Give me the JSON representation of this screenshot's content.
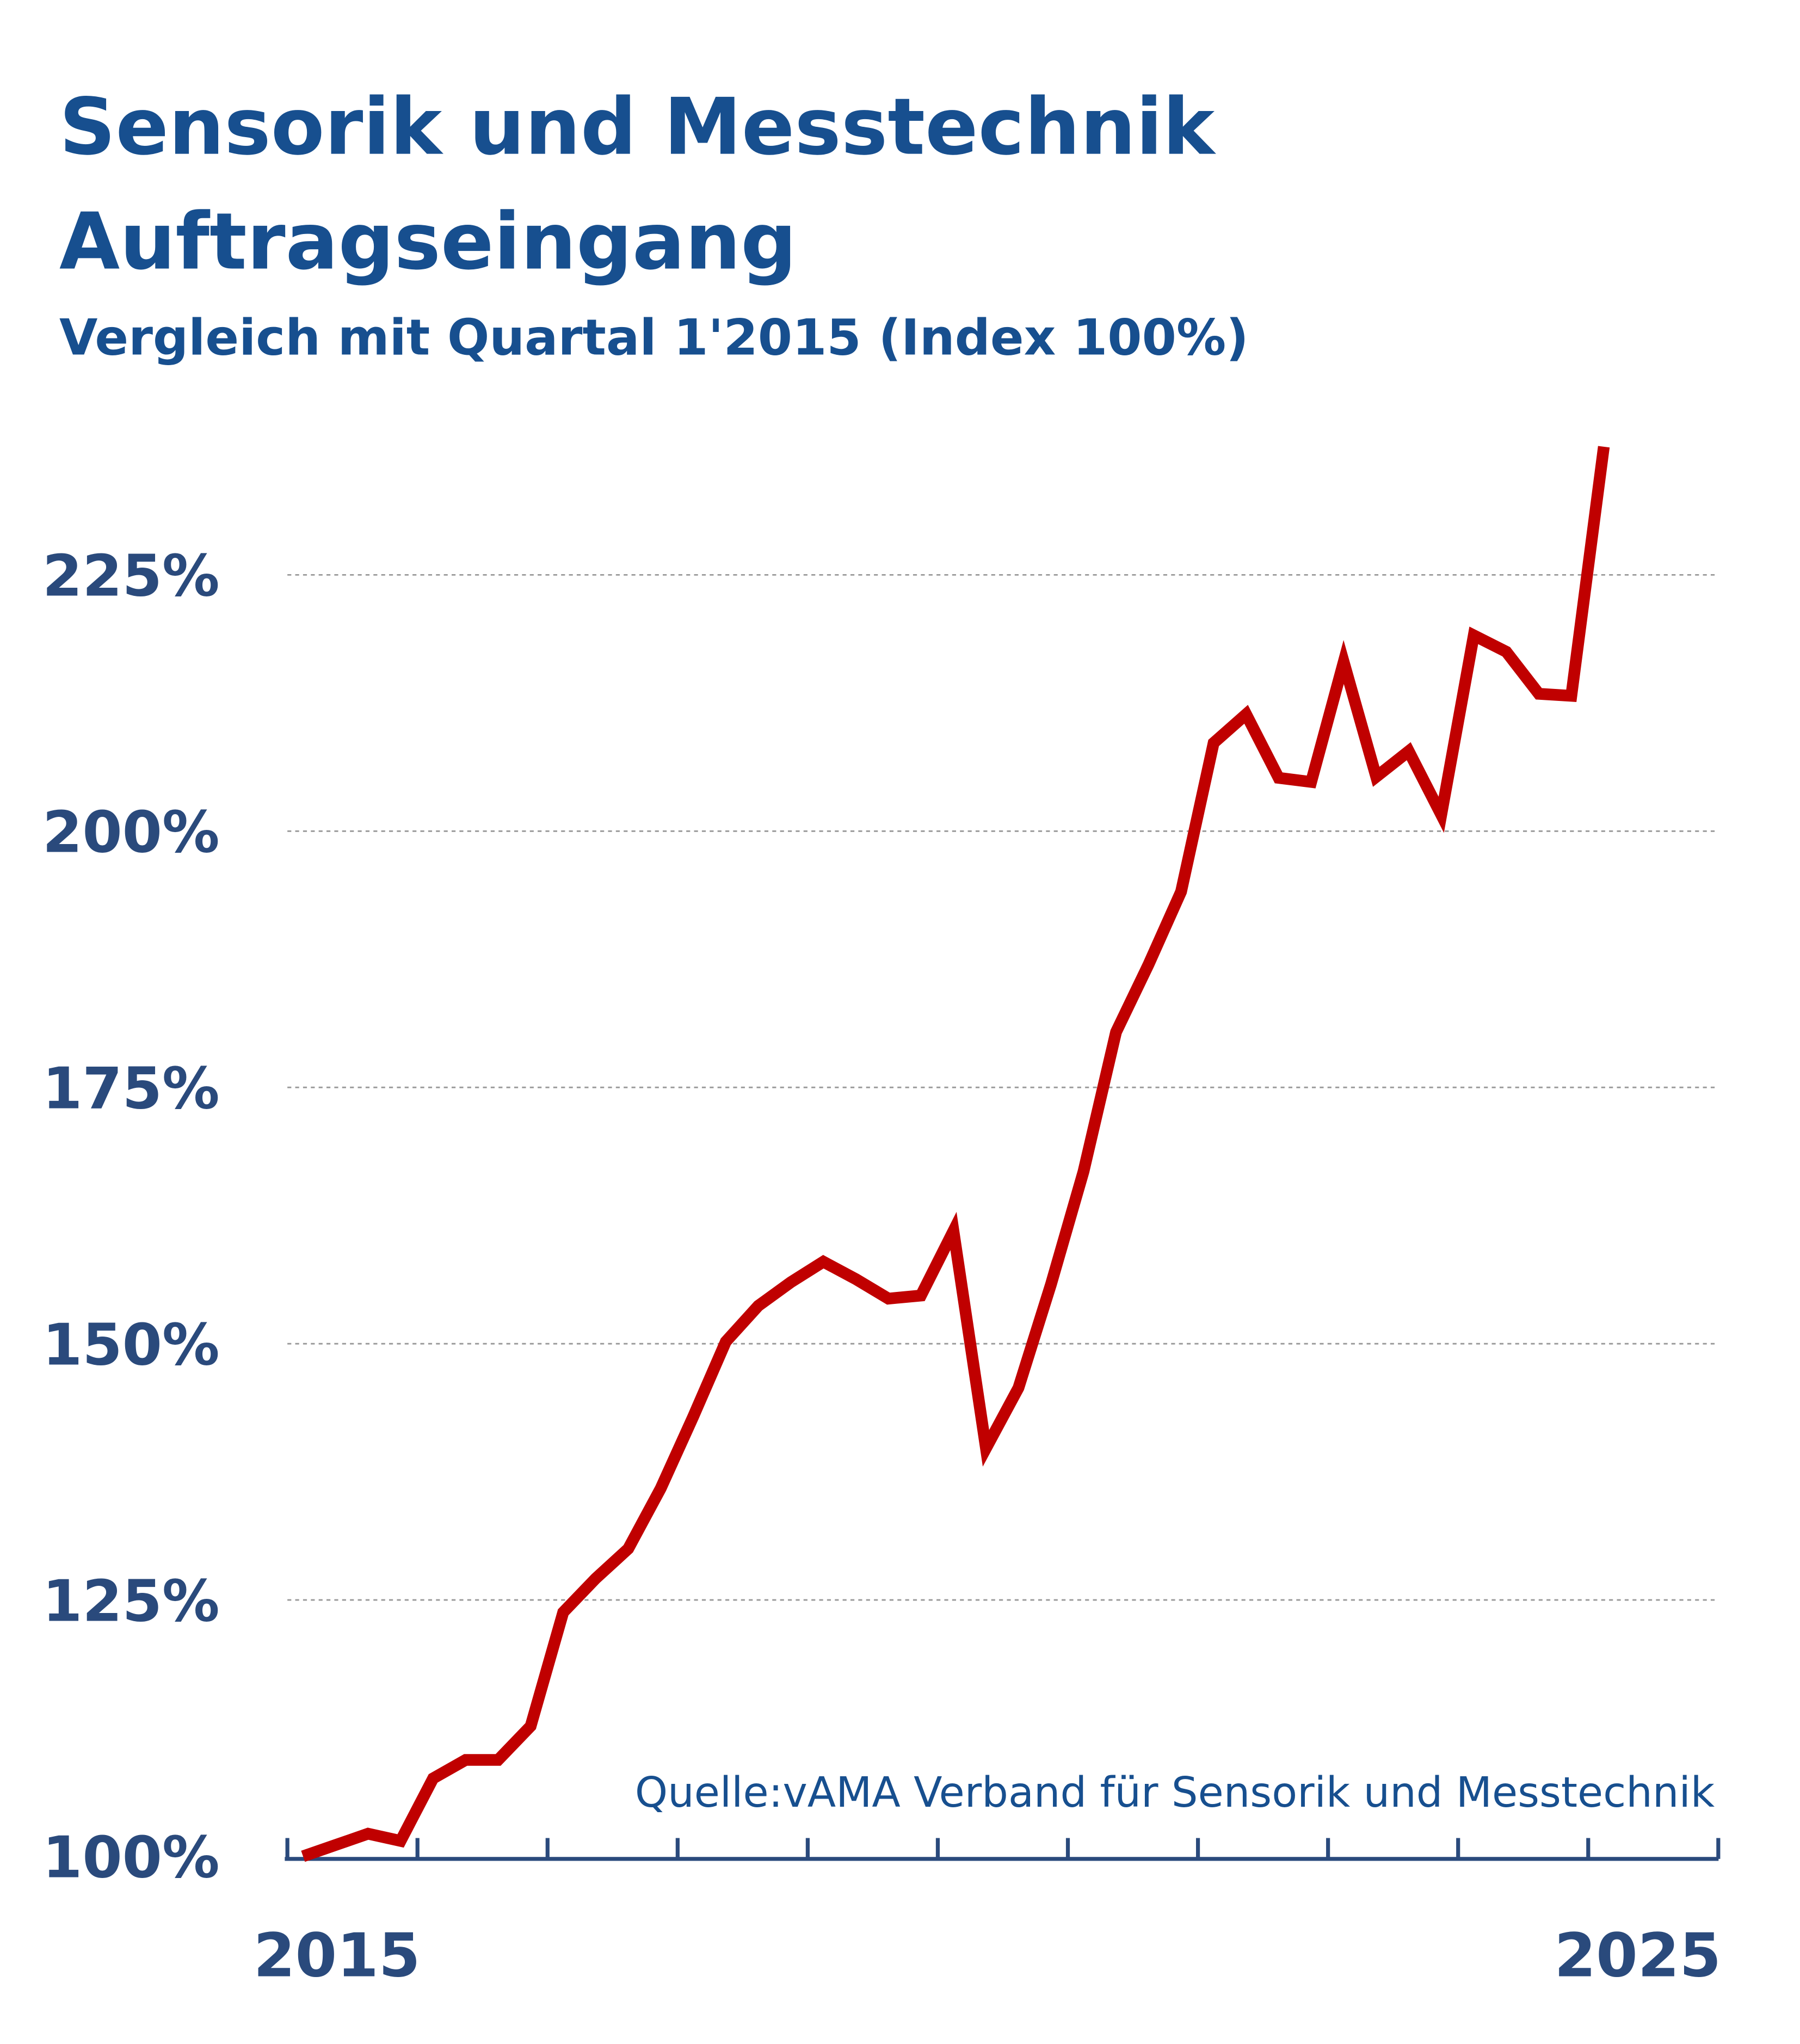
{
  "chart_data": {
    "type": "line",
    "title": "Sensorik und Messtechnik",
    "title_line2": "Auftragseingang",
    "subtitle": "Vergleich mit Quartal 1'2015 (Index 100%)",
    "source": "Quelle:vAMA Verband für Sensorik und Messtechnik",
    "xlabel": "",
    "ylabel": "",
    "x_tick_labels": [
      "2015",
      "2025"
    ],
    "x_range_years": [
      2015,
      2026
    ],
    "y_ticks": [
      100,
      125,
      150,
      175,
      200,
      225
    ],
    "y_tick_labels": [
      "100%",
      "125%",
      "150%",
      "175%",
      "200%",
      "225%"
    ],
    "ylim": [
      100,
      240
    ],
    "grid": true,
    "colors": {
      "line": "#c00000",
      "title": "#174f8f",
      "axis": "#2a4a7c",
      "grid": "#999999"
    },
    "series": [
      {
        "name": "Auftragseingang Index",
        "x_start": "2015 Q1",
        "step": "quarter",
        "values": [
          100,
          101.1,
          102.2,
          101.5,
          107.6,
          109.4,
          109.4,
          112.7,
          123.8,
          127.1,
          130.0,
          135.9,
          142.9,
          150.2,
          153.7,
          156.0,
          158.0,
          156.3,
          154.4,
          154.7,
          161.0,
          139.8,
          145.7,
          155.8,
          166.8,
          180.4,
          187.0,
          194.1,
          208.6,
          211.4,
          205.2,
          204.8,
          216.5,
          205.3,
          207.8,
          201.6,
          219.1,
          217.5,
          213.4,
          213.2,
          237.5
        ]
      }
    ]
  }
}
